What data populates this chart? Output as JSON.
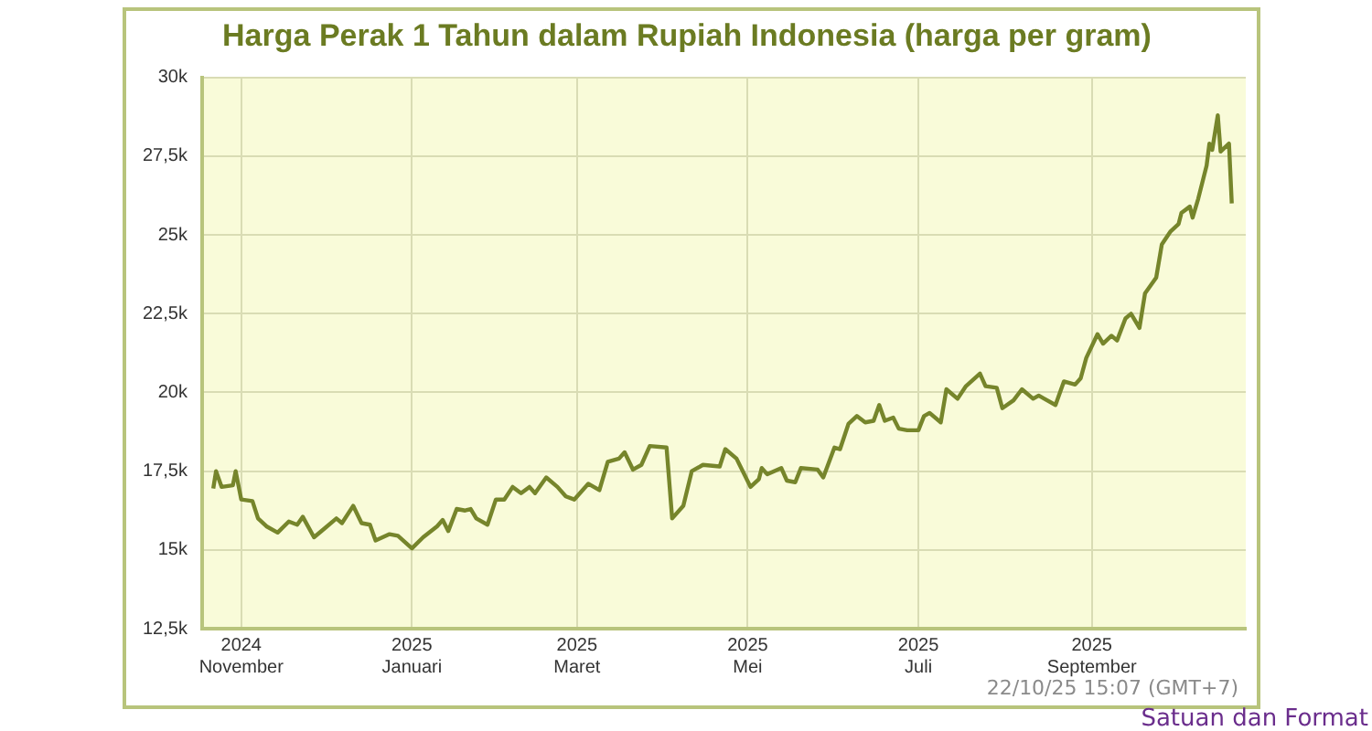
{
  "chart_data": {
    "type": "line",
    "title": "Harga Perak 1 Tahun dalam Rupiah Indonesia (harga per gram)",
    "x": [
      "2024-10-22",
      "2024-10-23",
      "2024-10-25",
      "2024-10-29",
      "2024-10-30",
      "2024-11-01",
      "2024-11-05",
      "2024-11-07",
      "2024-11-10",
      "2024-11-14",
      "2024-11-18",
      "2024-11-21",
      "2024-11-23",
      "2024-11-27",
      "2024-12-01",
      "2024-12-05",
      "2024-12-07",
      "2024-12-11",
      "2024-12-14",
      "2024-12-17",
      "2024-12-19",
      "2024-12-24",
      "2024-12-27",
      "2025-01-01",
      "2025-01-05",
      "2025-01-10",
      "2025-01-12",
      "2025-01-14",
      "2025-01-17",
      "2025-01-20",
      "2025-01-22",
      "2025-01-24",
      "2025-01-28",
      "2025-01-31",
      "2025-02-03",
      "2025-02-06",
      "2025-02-09",
      "2025-02-12",
      "2025-02-14",
      "2025-02-18",
      "2025-02-22",
      "2025-02-25",
      "2025-02-28",
      "2025-03-05",
      "2025-03-09",
      "2025-03-12",
      "2025-03-16",
      "2025-03-18",
      "2025-03-21",
      "2025-03-24",
      "2025-03-27",
      "2025-04-02",
      "2025-04-04",
      "2025-04-08",
      "2025-04-11",
      "2025-04-15",
      "2025-04-21",
      "2025-04-23",
      "2025-04-27",
      "2025-05-02",
      "2025-05-05",
      "2025-05-06",
      "2025-05-08",
      "2025-05-13",
      "2025-05-15",
      "2025-05-18",
      "2025-05-20",
      "2025-05-26",
      "2025-05-28",
      "2025-06-01",
      "2025-06-03",
      "2025-06-06",
      "2025-06-09",
      "2025-06-12",
      "2025-06-15",
      "2025-06-17",
      "2025-06-19",
      "2025-06-22",
      "2025-06-24",
      "2025-06-27",
      "2025-07-01",
      "2025-07-03",
      "2025-07-05",
      "2025-07-09",
      "2025-07-11",
      "2025-07-15",
      "2025-07-18",
      "2025-07-23",
      "2025-07-25",
      "2025-07-29",
      "2025-07-31",
      "2025-08-04",
      "2025-08-07",
      "2025-08-11",
      "2025-08-13",
      "2025-08-15",
      "2025-08-19",
      "2025-08-22",
      "2025-08-26",
      "2025-08-28",
      "2025-08-30",
      "2025-09-03",
      "2025-09-05",
      "2025-09-08",
      "2025-09-10",
      "2025-09-13",
      "2025-09-15",
      "2025-09-18",
      "2025-09-20",
      "2025-09-24",
      "2025-09-26",
      "2025-09-29",
      "2025-10-02",
      "2025-10-03",
      "2025-10-06",
      "2025-10-07",
      "2025-10-09",
      "2025-10-12",
      "2025-10-13",
      "2025-10-14",
      "2025-10-16",
      "2025-10-17",
      "2025-10-20",
      "2025-10-21"
    ],
    "series": [
      {
        "color": "#76852b",
        "values": [
          16950,
          17500,
          17000,
          17050,
          17500,
          16600,
          16550,
          16000,
          15750,
          15550,
          15900,
          15800,
          16050,
          15400,
          15700,
          16000,
          15850,
          16400,
          15850,
          15800,
          15300,
          15500,
          15450,
          15050,
          15400,
          15750,
          15950,
          15600,
          16300,
          16250,
          16300,
          16000,
          15800,
          16600,
          16600,
          17000,
          16800,
          17000,
          16800,
          17300,
          17000,
          16700,
          16600,
          17100,
          16900,
          17800,
          17900,
          18100,
          17550,
          17700,
          18300,
          18250,
          16000,
          16400,
          17500,
          17700,
          17650,
          18200,
          17900,
          17000,
          17250,
          17600,
          17400,
          17600,
          17200,
          17150,
          17600,
          17550,
          17300,
          18250,
          18200,
          19000,
          19250,
          19050,
          19100,
          19600,
          19100,
          19200,
          18850,
          18800,
          18800,
          19250,
          19350,
          19050,
          20100,
          19800,
          20200,
          20600,
          20200,
          20150,
          19500,
          19750,
          20100,
          19800,
          19900,
          19800,
          19600,
          20350,
          20250,
          20450,
          21100,
          21850,
          21550,
          21800,
          21650,
          22350,
          22500,
          22050,
          23150,
          23650,
          24700,
          25100,
          25350,
          25700,
          25900,
          25550,
          26150,
          27200,
          27900,
          27700,
          28800,
          27650,
          27900,
          26000
        ]
      }
    ],
    "xlim": [
      "2024-10-18",
      "2025-10-26"
    ],
    "xticks": [
      {
        "value": "2024-11-01",
        "label": "2024\nNovember"
      },
      {
        "value": "2025-01-01",
        "label": "2025\nJanuari"
      },
      {
        "value": "2025-03-01",
        "label": "2025\nMaret"
      },
      {
        "value": "2025-05-01",
        "label": "2025\nMei"
      },
      {
        "value": "2025-07-01",
        "label": "2025\nJuli"
      },
      {
        "value": "2025-09-01",
        "label": "2025\nSeptember"
      }
    ],
    "ylim": [
      12500,
      30000
    ],
    "yticks": [
      {
        "value": 12500,
        "label": "12,5k"
      },
      {
        "value": 15000,
        "label": "15k"
      },
      {
        "value": 17500,
        "label": "17,5k"
      },
      {
        "value": 20000,
        "label": "20k"
      },
      {
        "value": 22500,
        "label": "22,5k"
      },
      {
        "value": 25000,
        "label": "25k"
      },
      {
        "value": 27500,
        "label": "27,5k"
      },
      {
        "value": 30000,
        "label": "30k"
      }
    ],
    "grid": true,
    "legend": false,
    "marker": "none",
    "line_style": "solid",
    "annotations": [
      "22/10/25 15:07 (GMT+7)",
      "Satuan dan Format"
    ]
  }
}
